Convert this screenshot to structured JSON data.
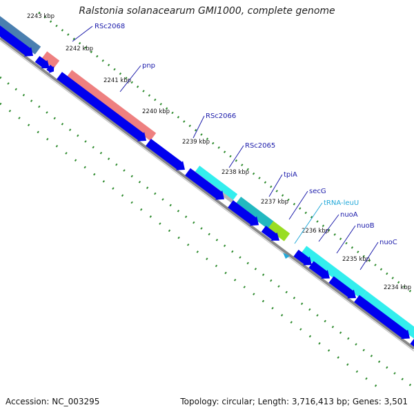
{
  "title": "Ralstonia solanacearum GMI1000, complete genome",
  "footer": {
    "accession": "Accession: NC_003295",
    "summary": "Topology: circular; Length: 3,716,413 bp; Genes: 3,501"
  },
  "colors": {
    "backbone": "#888888",
    "cds_arrow": "#0000ee",
    "tick": "#2e8b2e",
    "gene_label": "#1a1aaa",
    "trna_label": "#22a8d8",
    "cog_blue_gray": "#4a7fb0",
    "cog_salmon": "#ee8080",
    "cog_cyan": "#33eeee",
    "cog_teal": "#22b8c0",
    "cog_lime": "#99dd22",
    "cog_gray": "#b8b8b8"
  },
  "kbp_ticks": [
    "2243 kbp",
    "2242 kbp",
    "2241 kbp",
    "2240 kbp",
    "2239 kbp",
    "2238 kbp",
    "2237 kbp",
    "2236 kbp",
    "2235 kbp",
    "2234 kbp"
  ],
  "genes": [
    {
      "name": "RSc2068",
      "type": "CDS"
    },
    {
      "name": "pnp",
      "type": "CDS"
    },
    {
      "name": "RSc2066",
      "type": "CDS"
    },
    {
      "name": "RSc2065",
      "type": "CDS"
    },
    {
      "name": "tpiA",
      "type": "CDS"
    },
    {
      "name": "secG",
      "type": "CDS"
    },
    {
      "name": "tRNA-leuU",
      "type": "tRNA"
    },
    {
      "name": "nuoA",
      "type": "CDS"
    },
    {
      "name": "nuoB",
      "type": "CDS"
    },
    {
      "name": "nuoC",
      "type": "CDS"
    }
  ]
}
